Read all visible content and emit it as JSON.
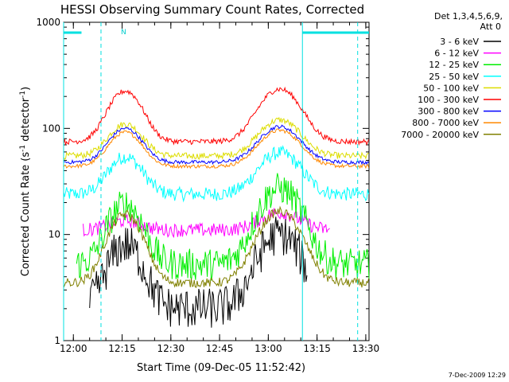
{
  "chart_data": {
    "type": "line",
    "title": "HESSI Observing Summary Count Rates, Corrected",
    "xlabel": "Start Time (09-Dec-05 11:52:42)",
    "ylabel": "Corrected Count Rate (s",
    "ylabel_sup": "-1",
    "ylabel_mid": " detector",
    "ylabel_close": ")",
    "y_scale": "log",
    "ylim": [
      1,
      1000
    ],
    "x_start_minutes": 717,
    "xlim_minutes": [
      717,
      811
    ],
    "x_ticks": [
      "12:00",
      "12:15",
      "12:30",
      "12:45",
      "13:00",
      "13:15",
      "13:30"
    ],
    "x_tick_minutes": [
      720,
      735,
      750,
      765,
      780,
      795,
      810
    ],
    "y_ticks": [
      "1",
      "10",
      "100",
      "1000"
    ],
    "y_tick_values": [
      1,
      10,
      100,
      1000
    ],
    "legend_header": [
      "Det 1,3,4,5,6,9,",
      "Att 0"
    ],
    "legend_position": "right",
    "footer_stamp": "7-Dec-2009 12:29",
    "saa_flag_label": "N",
    "night_intervals": [
      [
        717,
        722.5
      ],
      [
        790.5,
        811
      ]
    ],
    "vlines_solid": [
      717,
      790.5
    ],
    "vlines_dashed": [
      728.5,
      807.5
    ],
    "series": [
      {
        "name": "3 - 6 keV",
        "color": "#000000",
        "start": 725,
        "end": 792,
        "base": 2,
        "a1": 6,
        "a2": 8,
        "noise": 0.45
      },
      {
        "name": "6 - 12 keV",
        "color": "#ff00ff",
        "start": 723,
        "end": 799,
        "base": 11,
        "a1": 2.5,
        "a2": 5,
        "noise": 0.15
      },
      {
        "name": "12 - 25 keV",
        "color": "#00ee00",
        "start": 721,
        "end": 811,
        "base": 5.2,
        "a1": 14,
        "a2": 22,
        "noise": 0.35
      },
      {
        "name": "25 - 50 keV",
        "color": "#00ffff",
        "start": 717,
        "end": 811,
        "base": 24,
        "a1": 30,
        "a2": 35,
        "noise": 0.15
      },
      {
        "name": "50 - 100 keV",
        "color": "#dddd00",
        "start": 717,
        "end": 811,
        "base": 55,
        "a1": 55,
        "a2": 65,
        "noise": 0.07
      },
      {
        "name": "100 - 300 keV",
        "color": "#ff0000",
        "start": 717,
        "end": 811,
        "base": 75,
        "a1": 150,
        "a2": 160,
        "noise": 0.06
      },
      {
        "name": "300 - 800 keV",
        "color": "#0000ff",
        "start": 717,
        "end": 811,
        "base": 48,
        "a1": 52,
        "a2": 56,
        "noise": 0.04
      },
      {
        "name": "800 - 7000 keV",
        "color": "#ff8800",
        "start": 717,
        "end": 811,
        "base": 44,
        "a1": 48,
        "a2": 52,
        "noise": 0.04
      },
      {
        "name": "7000 - 20000 keV",
        "color": "#808000",
        "start": 717,
        "end": 811,
        "base": 3.5,
        "a1": 12,
        "a2": 13,
        "noise": 0.1
      }
    ]
  }
}
